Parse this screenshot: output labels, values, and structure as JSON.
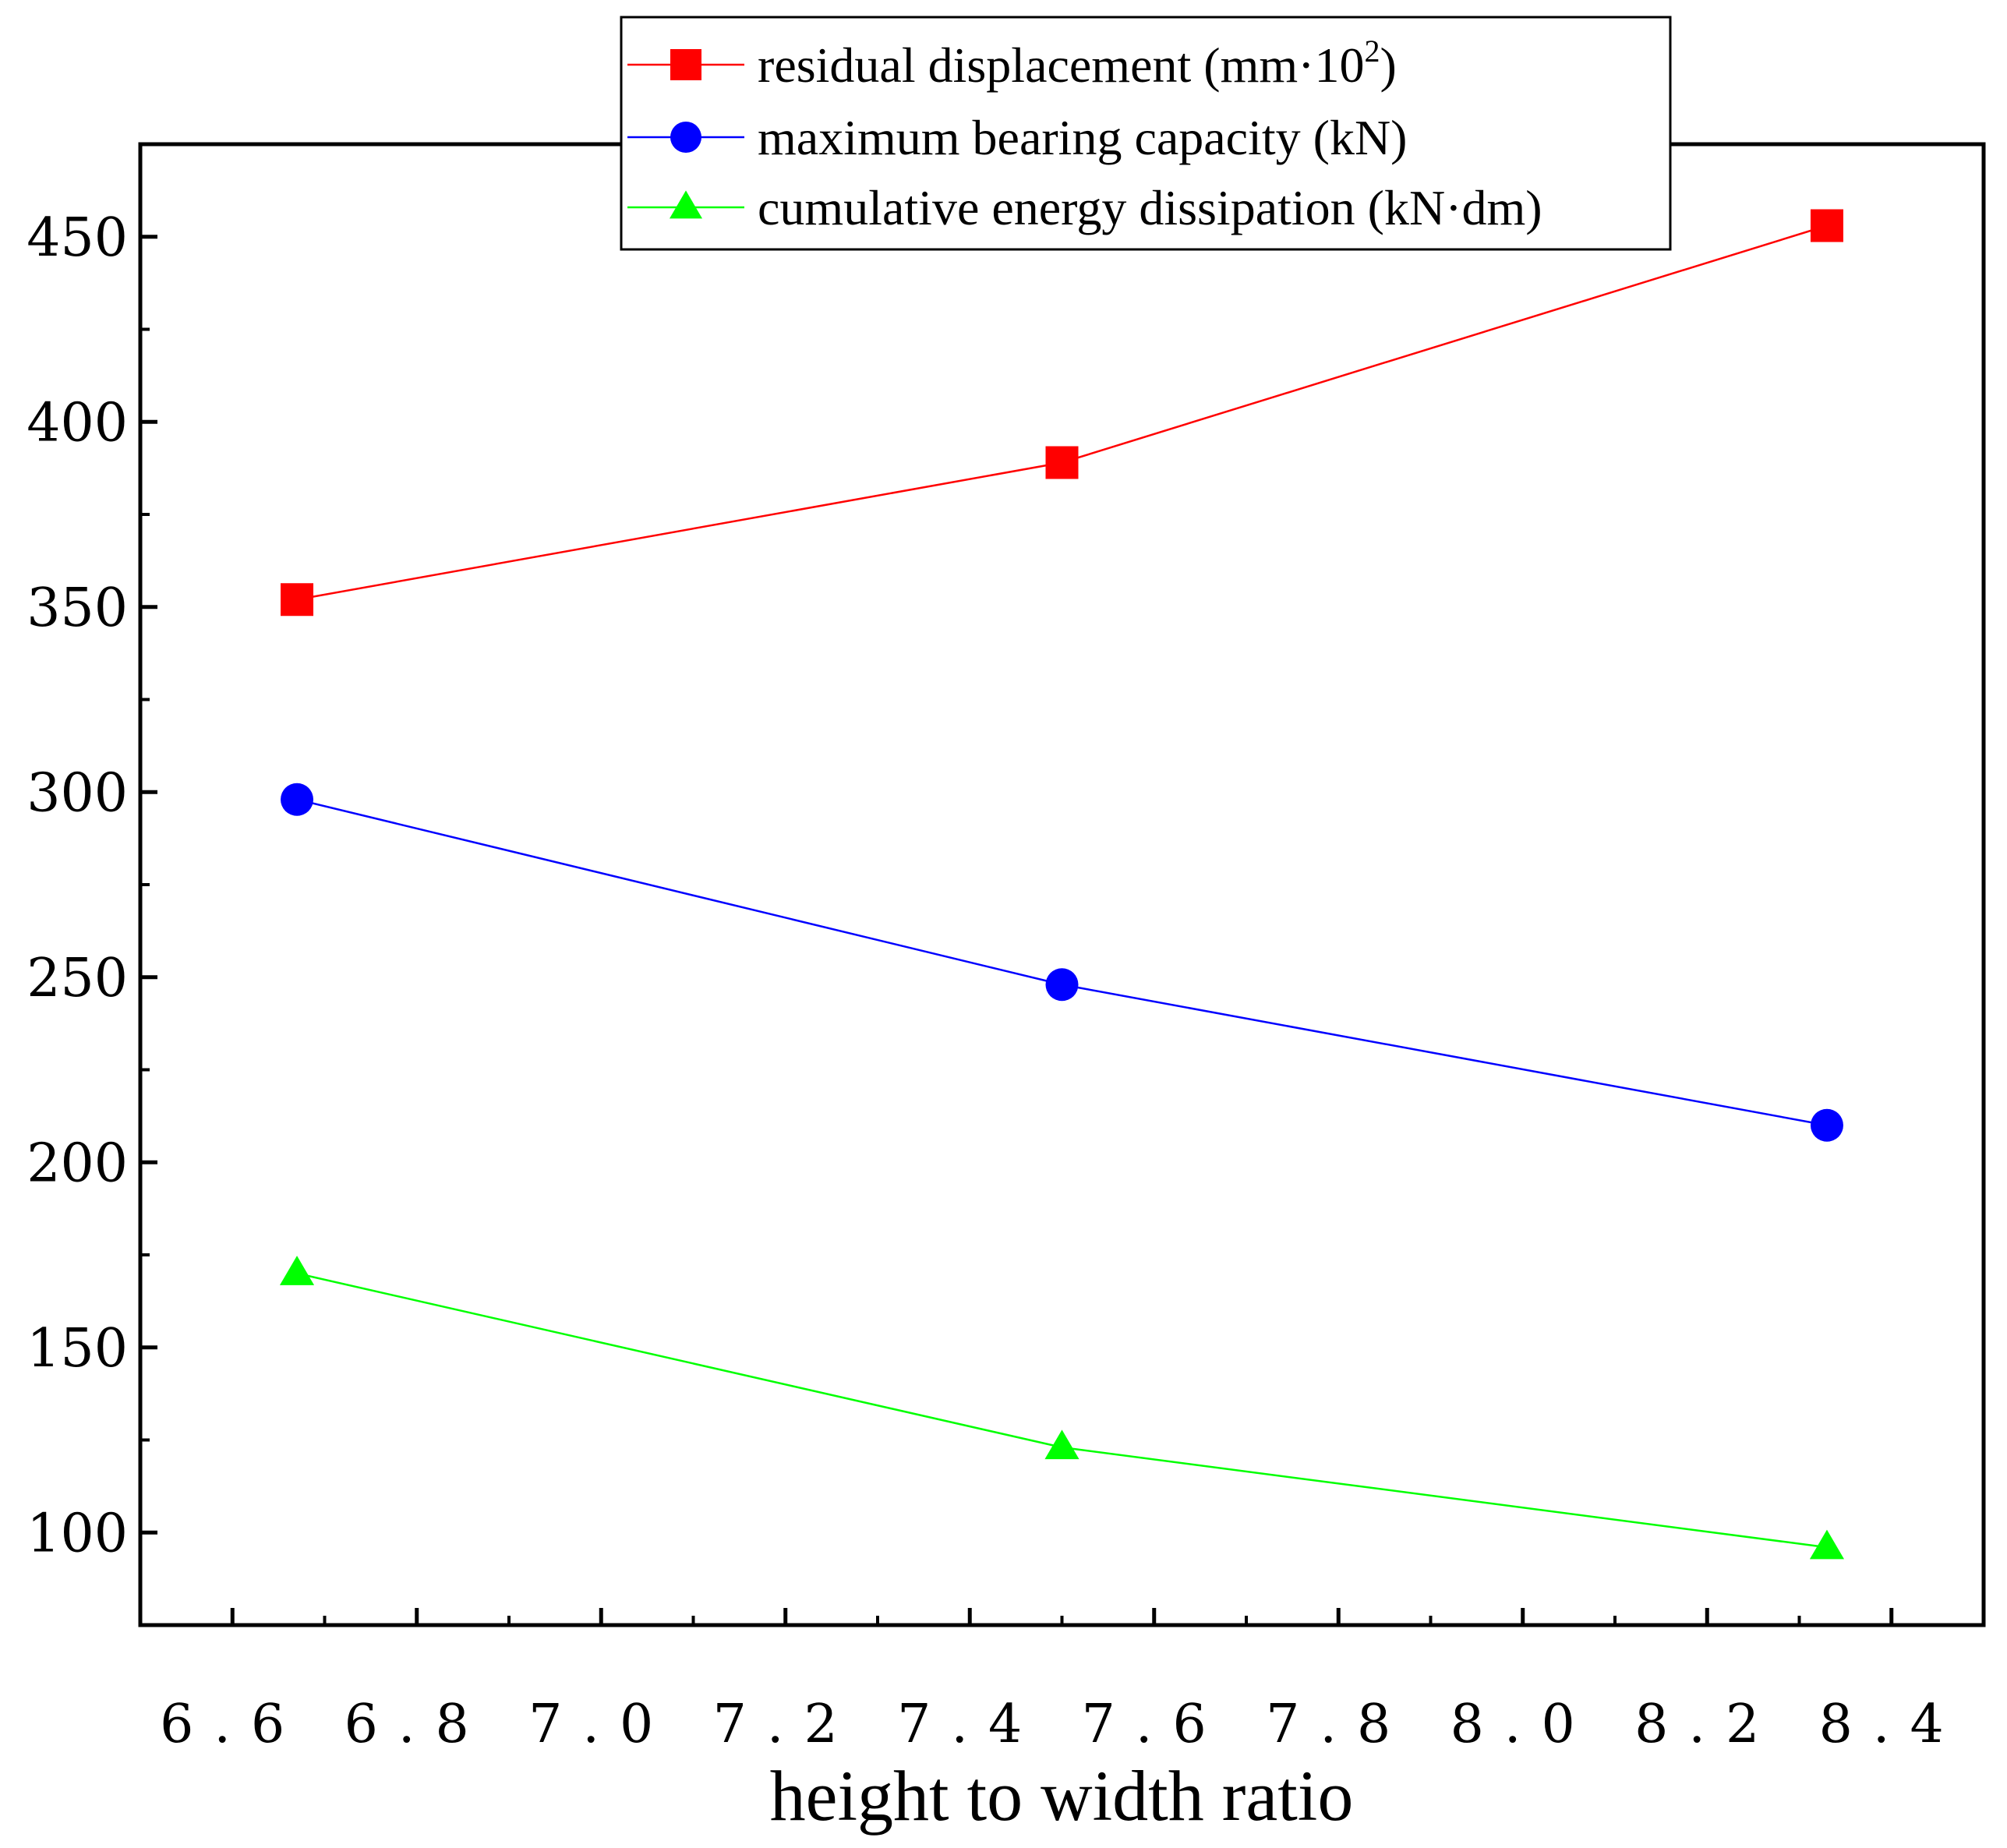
{
  "chart_data": {
    "type": "line",
    "xlabel": "height to width ratio",
    "ylabel": "",
    "xlim": [
      6.5,
      8.5
    ],
    "ylim": [
      75,
      475
    ],
    "x_ticks": [
      "6.6",
      "6.8",
      "7.0",
      "7.2",
      "7.4",
      "7.6",
      "7.8",
      "8.0",
      "8.2",
      "8.4"
    ],
    "y_ticks": [
      "100",
      "150",
      "200",
      "250",
      "300",
      "350",
      "400",
      "450"
    ],
    "grid": false,
    "legend_position": "top-right",
    "x": [
      6.67,
      7.5,
      8.33
    ],
    "series": [
      {
        "name": "residual displacement (mm·10",
        "name_sup": "2",
        "name_tail": ")",
        "marker": "square",
        "color": "#ff0000",
        "values": [
          352,
          389,
          453
        ]
      },
      {
        "name": "maximum bearing capacity (kN)",
        "marker": "circle",
        "color": "#0000ff",
        "values": [
          298,
          248,
          210
        ]
      },
      {
        "name": "cumulative energy dissipation (kN·dm)",
        "marker": "triangle",
        "color": "#00ff00",
        "values": [
          170,
          123,
          96
        ]
      }
    ]
  }
}
